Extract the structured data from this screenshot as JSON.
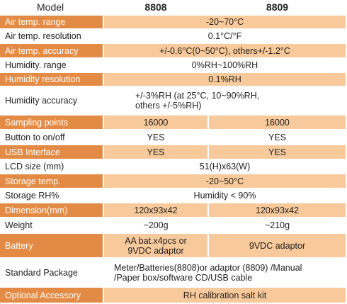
{
  "header": {
    "label": "Model",
    "models": [
      "8808",
      "8809"
    ]
  },
  "rows": [
    {
      "label": "Air temp. range",
      "values": [
        "-20~70°C"
      ]
    },
    {
      "label": "Air temp. resolution",
      "values": [
        "0.1°C/°F"
      ]
    },
    {
      "label": "Air temp. accuracy",
      "values": [
        "+/-0.6°C(0~50°C), others+/-1.2°C"
      ]
    },
    {
      "label": "Humidity. range",
      "values": [
        "0%RH~100%RH"
      ]
    },
    {
      "label": "Humidity resolution",
      "values": [
        "0.1%RH"
      ]
    },
    {
      "label": "Humidity accuracy",
      "values": [
        "+/-3%RH (at 25°C, 10~90%RH,\nothers +/-5%RH)"
      ]
    },
    {
      "label": "Sampling points",
      "values": [
        "16000",
        "16000"
      ]
    },
    {
      "label": "Button to on/off",
      "values": [
        "YES",
        "YES"
      ]
    },
    {
      "label": "USB Interface",
      "values": [
        "YES",
        "YES"
      ]
    },
    {
      "label": "LCD size (mm)",
      "values": [
        "51(H)x63(W)"
      ]
    },
    {
      "label": "Storage temp.",
      "values": [
        "-20~50°C"
      ]
    },
    {
      "label": "Storage RH%",
      "values": [
        "Humidity < 90%"
      ]
    },
    {
      "label": "Dimension(mm)",
      "values": [
        "120x93x42",
        "120x93x42"
      ]
    },
    {
      "label": "Weight",
      "values": [
        "~200g",
        "~210g"
      ]
    },
    {
      "label": "Battery",
      "values": [
        "AA bat.x4pcs or\n9VDC adaptor",
        "9VDC adaptor"
      ]
    },
    {
      "label": "Standard Package",
      "values": [
        "Meter/Batteries(8808)or adaptor (8809) /Manual\n/Paper box/software CD/USB cable"
      ]
    },
    {
      "label": "Optional Accessory",
      "values": [
        "RH calibration salt kit"
      ]
    }
  ]
}
